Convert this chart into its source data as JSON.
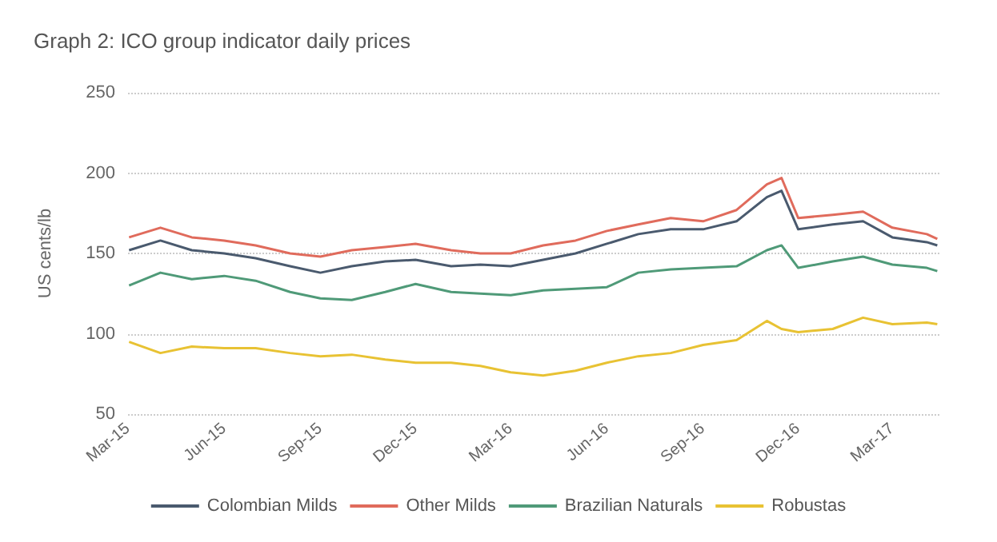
{
  "chart_data": {
    "type": "line",
    "title": "Graph 2: ICO group indicator daily prices",
    "ylabel": "US cents/lb",
    "x": [
      "2015-03-02",
      "2015-04-01",
      "2015-05-01",
      "2015-06-01",
      "2015-07-01",
      "2015-08-03",
      "2015-09-01",
      "2015-10-01",
      "2015-11-02",
      "2015-12-01",
      "2016-01-04",
      "2016-02-01",
      "2016-03-01",
      "2016-04-01",
      "2016-05-02",
      "2016-06-01",
      "2016-07-01",
      "2016-08-01",
      "2016-09-01",
      "2016-10-03",
      "2016-11-01",
      "2016-11-15",
      "2016-12-01",
      "2017-01-03",
      "2017-02-01",
      "2017-03-01",
      "2017-04-03",
      "2017-04-13"
    ],
    "series": [
      {
        "name": "Colombian Milds",
        "color": "#4a5a6e",
        "values": [
          152,
          158,
          152,
          150,
          147,
          142,
          138,
          142,
          145,
          146,
          142,
          143,
          142,
          146,
          150,
          156,
          162,
          165,
          165,
          170,
          185,
          189,
          165,
          168,
          170,
          160,
          157,
          155
        ]
      },
      {
        "name": "Other Milds",
        "color": "#e06b5c",
        "values": [
          160,
          166,
          160,
          158,
          155,
          150,
          148,
          152,
          154,
          156,
          152,
          150,
          150,
          155,
          158,
          164,
          168,
          172,
          170,
          177,
          193,
          197,
          172,
          174,
          176,
          166,
          162,
          159
        ]
      },
      {
        "name": "Brazilian Naturals",
        "color": "#4f9a78",
        "values": [
          130,
          138,
          134,
          136,
          133,
          126,
          122,
          121,
          126,
          131,
          126,
          125,
          124,
          127,
          128,
          129,
          138,
          140,
          141,
          142,
          152,
          155,
          141,
          145,
          148,
          143,
          141,
          139
        ]
      },
      {
        "name": "Robustas",
        "color": "#e8c233",
        "values": [
          95,
          88,
          92,
          91,
          91,
          88,
          86,
          87,
          84,
          82,
          82,
          80,
          76,
          74,
          77,
          82,
          86,
          88,
          93,
          96,
          108,
          103,
          101,
          103,
          110,
          106,
          107,
          106
        ]
      }
    ],
    "xlim": [
      "2015-03-01",
      "2017-04-15"
    ],
    "xticks": [
      {
        "value": "2015-03-01",
        "label": "Mar-15"
      },
      {
        "value": "2015-06-01",
        "label": "Jun-15"
      },
      {
        "value": "2015-09-01",
        "label": "Sep-15"
      },
      {
        "value": "2015-12-01",
        "label": "Dec-15"
      },
      {
        "value": "2016-03-01",
        "label": "Mar-16"
      },
      {
        "value": "2016-06-01",
        "label": "Jun-16"
      },
      {
        "value": "2016-09-01",
        "label": "Sep-16"
      },
      {
        "value": "2016-12-01",
        "label": "Dec-16"
      },
      {
        "value": "2017-03-01",
        "label": "Mar-17"
      }
    ],
    "ylim": [
      50,
      250
    ],
    "yticks": [
      50,
      100,
      150,
      200,
      250
    ],
    "grid": "y",
    "legend": "bottom",
    "marker": "none",
    "line_style": "solid"
  }
}
